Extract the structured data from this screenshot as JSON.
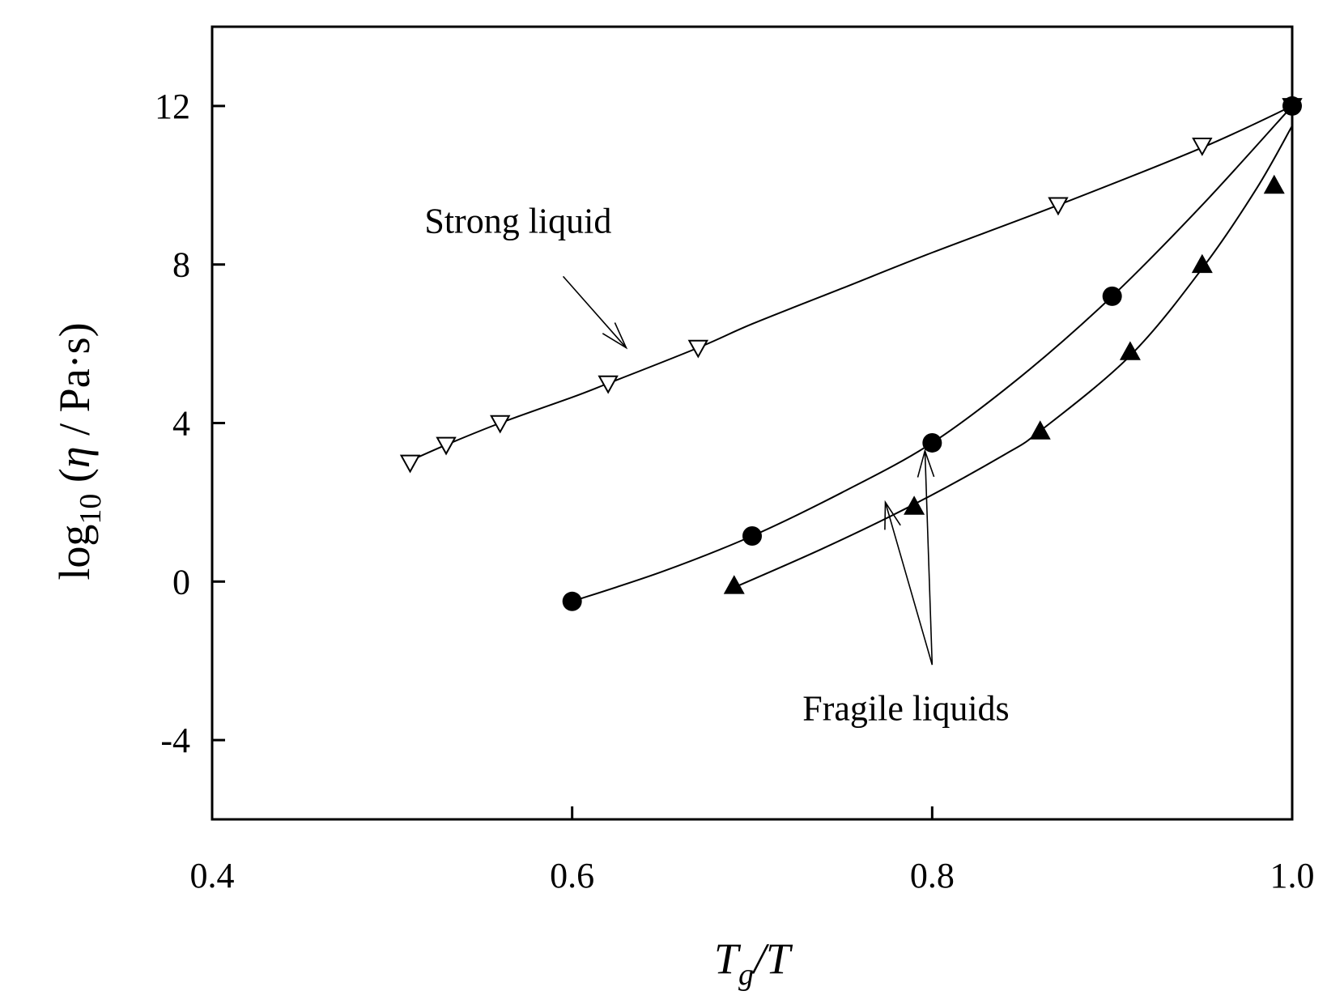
{
  "chart_data": {
    "type": "scatter",
    "xlabel": {
      "main": "T",
      "sub": "g",
      "tail": "/T"
    },
    "ylabel": {
      "log": "log",
      "sub": "10",
      "open": " (",
      "eta": "η",
      "tail": " / Pa·s)"
    },
    "xlim": [
      0.4,
      1.0
    ],
    "ylim": [
      -6,
      14
    ],
    "xticks": [
      0.4,
      0.6,
      0.8,
      1.0
    ],
    "xtick_labels": [
      "0.4",
      "0.6",
      "0.8",
      "1.0"
    ],
    "yticks": [
      -4,
      0,
      4,
      8,
      12
    ],
    "ytick_labels": [
      "-4",
      "0",
      "4",
      "8",
      "12"
    ],
    "grid": false,
    "series": [
      {
        "marker": "open-down-triangle",
        "x": [
          0.51,
          0.53,
          0.56,
          0.62,
          0.67,
          0.87,
          0.95,
          1.0
        ],
        "y": [
          3.0,
          3.45,
          4.0,
          5.0,
          5.9,
          9.5,
          11.0,
          12.0
        ],
        "curve": {
          "x": [
            0.51,
            0.53,
            0.56,
            0.6,
            0.62,
            0.67,
            0.7,
            0.75,
            0.8,
            0.87,
            0.95,
            1.0
          ],
          "y": [
            3.05,
            3.45,
            4.0,
            4.65,
            5.0,
            5.9,
            6.5,
            7.4,
            8.3,
            9.5,
            10.95,
            12.0
          ]
        }
      },
      {
        "marker": "filled-circle",
        "x": [
          0.6,
          0.7,
          0.8,
          0.9,
          1.0
        ],
        "y": [
          -0.5,
          1.15,
          3.5,
          7.2,
          12.0
        ],
        "curve": {
          "x": [
            0.6,
            0.65,
            0.7,
            0.75,
            0.8,
            0.85,
            0.9,
            0.95,
            1.0
          ],
          "y": [
            -0.5,
            0.25,
            1.15,
            2.25,
            3.5,
            5.2,
            7.2,
            9.5,
            12.0
          ]
        }
      },
      {
        "marker": "filled-triangle",
        "x": [
          0.69,
          0.79,
          0.86,
          0.91,
          0.95,
          0.99
        ],
        "y": [
          -0.1,
          1.9,
          3.8,
          5.8,
          8.0,
          10.0
        ],
        "curve": {
          "x": [
            0.69,
            0.74,
            0.79,
            0.84,
            0.86,
            0.91,
            0.95,
            0.98,
            1.0
          ],
          "y": [
            -0.15,
            0.85,
            1.95,
            3.2,
            3.8,
            5.7,
            7.9,
            9.9,
            11.5
          ]
        }
      }
    ],
    "annotations": [
      {
        "text": "Strong liquid",
        "at": [
          0.518,
          8.8
        ],
        "arrows": [
          {
            "from": [
              0.595,
              7.7
            ],
            "to": [
              0.63,
              5.9
            ]
          }
        ]
      },
      {
        "text": "Fragile liquids",
        "at": [
          0.728,
          -3.5
        ],
        "arrows": [
          {
            "from": [
              0.8,
              -2.1
            ],
            "to": [
              0.796,
              3.3
            ]
          },
          {
            "from": [
              0.8,
              -2.1
            ],
            "to": [
              0.774,
              2.0
            ]
          }
        ]
      }
    ]
  }
}
